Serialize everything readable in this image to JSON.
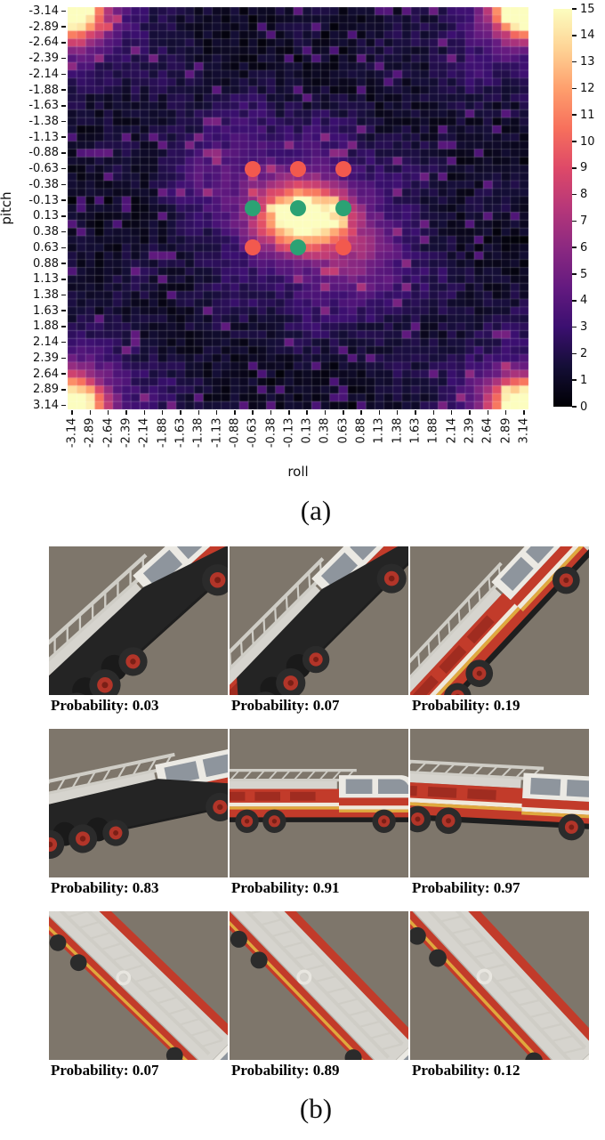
{
  "panel_a": {
    "caption": "(a)",
    "colors": {
      "scatter_red": "#f2594e",
      "scatter_green": "#2ba274"
    }
  },
  "panel_b": {
    "caption": "(b)",
    "background": "#7e766b",
    "cells": [
      {
        "probability_label": "Probability: 0.03",
        "variant": "belly",
        "rotation": -42,
        "scale": 1.4
      },
      {
        "probability_label": "Probability: 0.07",
        "variant": "belly",
        "rotation": -45,
        "scale": 1.32
      },
      {
        "probability_label": "Probability: 0.19",
        "variant": "side",
        "rotation": -47,
        "scale": 1.22
      },
      {
        "probability_label": "Probability: 0.83",
        "variant": "belly",
        "rotation": -12,
        "scale": 1.28
      },
      {
        "probability_label": "Probability: 0.91",
        "variant": "side",
        "rotation": 0,
        "scale": 1.05
      },
      {
        "probability_label": "Probability: 0.97",
        "variant": "side",
        "rotation": 3,
        "scale": 1.18
      },
      {
        "probability_label": "Probability: 0.07",
        "variant": "top",
        "rotation": 44,
        "scale": 1.28
      },
      {
        "probability_label": "Probability: 0.89",
        "variant": "top",
        "rotation": 46,
        "scale": 1.3
      },
      {
        "probability_label": "Probability: 0.12",
        "variant": "top",
        "rotation": 47,
        "scale": 1.35
      }
    ]
  },
  "chart_data": [
    {
      "type": "heatmap",
      "xlabel": "roll",
      "ylabel": "pitch",
      "x_range": [
        -3.14,
        3.14
      ],
      "y_range": [
        -3.14,
        3.14
      ],
      "grid_cells": 51,
      "colormap": "magma",
      "colorbar_range": [
        0,
        15
      ],
      "colorbar_tick_labels": [
        "15",
        "14",
        "13",
        "12",
        "11",
        "10",
        "9",
        "8",
        "7",
        "6",
        "5",
        "4",
        "3",
        "2",
        "1",
        "0"
      ],
      "x_tick_labels": [
        "-3.14",
        "-2.89",
        "-2.64",
        "-2.39",
        "-2.14",
        "-1.88",
        "-1.63",
        "-1.38",
        "-1.13",
        "-0.88",
        "-0.63",
        "-0.38",
        "-0.13",
        "0.13",
        "0.38",
        "0.63",
        "0.88",
        "1.13",
        "1.38",
        "1.63",
        "1.88",
        "2.14",
        "2.39",
        "2.64",
        "2.89",
        "3.14"
      ],
      "y_tick_labels": [
        "-3.14",
        "-2.89",
        "-2.64",
        "-2.39",
        "-2.14",
        "-1.88",
        "-1.63",
        "-1.38",
        "-1.13",
        "-0.88",
        "-0.63",
        "-0.38",
        "-0.13",
        "0.13",
        "0.38",
        "0.63",
        "0.88",
        "1.13",
        "1.38",
        "1.63",
        "1.88",
        "2.14",
        "2.39",
        "2.64",
        "2.89",
        "3.14"
      ],
      "hotspots": [
        {
          "x": 0.1,
          "y": 0.15,
          "peak": 15,
          "sigma_x": 0.42,
          "sigma_y": 0.34,
          "label": "central bright mode near (0,0)"
        },
        {
          "x": 3.14,
          "y": 3.14,
          "peak": 15,
          "sigma_x": 0.3,
          "sigma_y": 0.3,
          "label": "corner mode, wraps to all four corners at ±π"
        }
      ],
      "background_level": [
        0,
        2
      ],
      "scatter_points": [
        {
          "roll": -0.63,
          "pitch": -0.63,
          "color": "red"
        },
        {
          "roll": 0.0,
          "pitch": -0.63,
          "color": "red"
        },
        {
          "roll": 0.63,
          "pitch": -0.63,
          "color": "red"
        },
        {
          "roll": -0.63,
          "pitch": 0.0,
          "color": "green"
        },
        {
          "roll": 0.0,
          "pitch": 0.0,
          "color": "green"
        },
        {
          "roll": 0.63,
          "pitch": 0.0,
          "color": "green"
        },
        {
          "roll": -0.63,
          "pitch": 0.63,
          "color": "red"
        },
        {
          "roll": 0.0,
          "pitch": 0.63,
          "color": "green"
        },
        {
          "roll": 0.63,
          "pitch": 0.63,
          "color": "red"
        }
      ]
    },
    {
      "type": "table",
      "title": "(b) rendered fire-truck probabilities",
      "label_prefix": "Probability: ",
      "rows": [
        [
          "0.03",
          "0.07",
          "0.19"
        ],
        [
          "0.83",
          "0.91",
          "0.97"
        ],
        [
          "0.07",
          "0.89",
          "0.12"
        ]
      ]
    }
  ]
}
